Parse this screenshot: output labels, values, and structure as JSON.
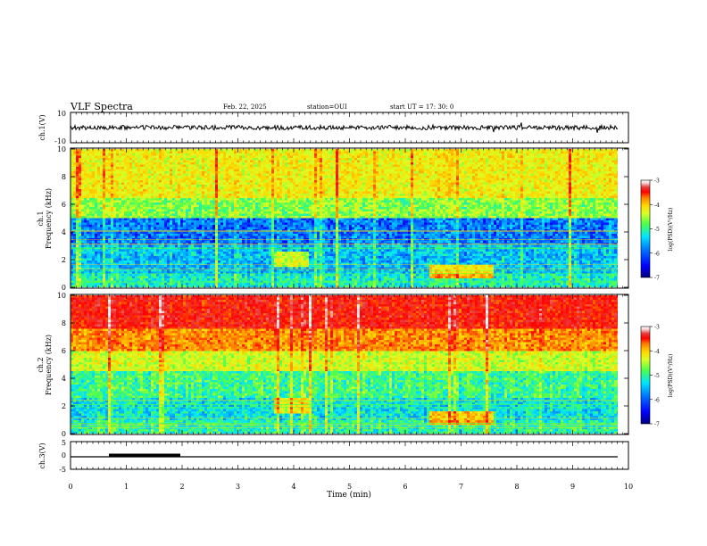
{
  "header": {
    "title": "VLF Spectra",
    "date": "Feb. 22, 2025",
    "station": "station=OUI",
    "start": "start  UT  =    17: 30: 0"
  },
  "colors": {
    "colormap": [
      "#00007f",
      "#0000ff",
      "#0080ff",
      "#00e5ff",
      "#4dff4d",
      "#d9ff26",
      "#ffd700",
      "#ff7f00",
      "#ff0000",
      "#e84040",
      "#f7d0d0",
      "#ffffff"
    ],
    "trace": "#000000",
    "frame": "#000000"
  },
  "chart_data": [
    {
      "id": "ch1-waveform",
      "type": "line",
      "ylabel": "ch.1(V)",
      "ylim": [
        -10,
        10
      ],
      "yticks": [
        "10",
        "-10"
      ],
      "xlim": [
        0,
        10
      ],
      "note_values": "noisy waveform centred near 0 V with small amplitude",
      "x": [
        0,
        10
      ],
      "y": [
        0,
        0
      ]
    },
    {
      "id": "ch1-spectrogram",
      "type": "heatmap",
      "ylabel": "ch.1\nFrequency (kHz)",
      "ylabel_lines": [
        "ch.1",
        "Frequency (kHz)"
      ],
      "ylim": [
        0,
        10
      ],
      "yticks": [
        "0",
        "2",
        "4",
        "6",
        "8",
        "10"
      ],
      "xlim": [
        0,
        10
      ],
      "colorbar": {
        "label": "log(PSD)(V²/Hz)",
        "range": [
          -7,
          -3
        ],
        "ticks": [
          "-3",
          "-4",
          "-5",
          "-6",
          "-7"
        ]
      }
    },
    {
      "id": "ch2-spectrogram",
      "type": "heatmap",
      "ylabel_lines": [
        "ch.2",
        "Frequency (kHz)"
      ],
      "ylim": [
        0,
        10
      ],
      "yticks": [
        "0",
        "2",
        "4",
        "6",
        "8",
        "10"
      ],
      "xlim": [
        0,
        10
      ],
      "colorbar": {
        "label": "log(PSD)(V²/Hz)",
        "range": [
          -7,
          -3
        ],
        "ticks": [
          "-3",
          "-4",
          "-5",
          "-6",
          "-7"
        ]
      }
    },
    {
      "id": "ch3-waveform",
      "type": "line",
      "ylabel": "ch.3(V)",
      "ylim": [
        -5,
        5
      ],
      "yticks": [
        "5",
        "0",
        "-5"
      ],
      "xlim": [
        0,
        10
      ],
      "x": [
        0,
        0.7,
        0.7,
        1.98,
        1.98,
        10
      ],
      "y": [
        -1.2,
        -1.2,
        -1.2,
        -1.2,
        -1.2,
        -1.2
      ],
      "pulse": {
        "x": [
          0.7,
          1.98
        ],
        "y": -0.6
      }
    }
  ],
  "xaxis": {
    "label": "Time (min)",
    "ticks": [
      "0",
      "1",
      "2",
      "3",
      "4",
      "5",
      "6",
      "7",
      "8",
      "9",
      "10"
    ],
    "range": [
      0,
      10
    ]
  }
}
